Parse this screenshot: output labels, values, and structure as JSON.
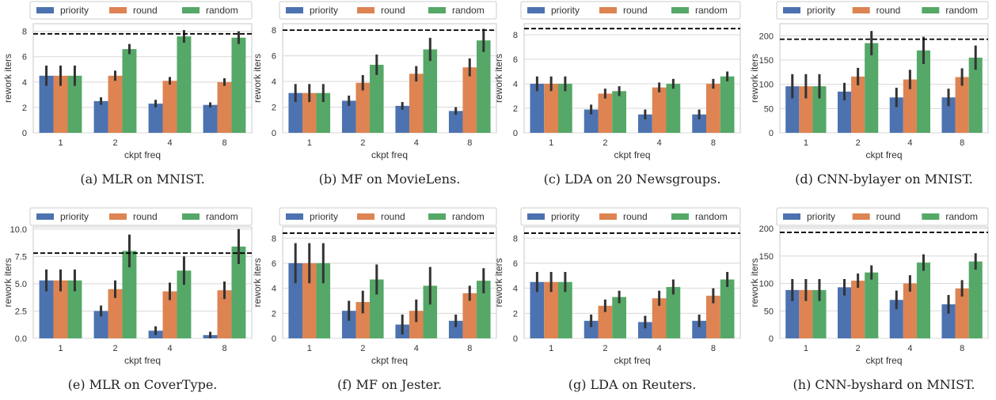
{
  "legend": [
    "priority",
    "round",
    "random"
  ],
  "colors": {
    "priority": "#4c72b0",
    "round": "#dd8452",
    "random": "#55a868",
    "errorbar": "#333333",
    "reference": "#000000"
  },
  "chart_data": [
    {
      "type": "bar",
      "caption": "(a) MLR on MNIST.",
      "xlabel": "ckpt freq",
      "ylabel": "rework iters",
      "categories": [
        "1",
        "2",
        "4",
        "8"
      ],
      "ylim": [
        0,
        8.6
      ],
      "yticks": [
        0,
        2,
        4,
        6,
        8
      ],
      "reference_line": 7.8,
      "series": [
        {
          "name": "priority",
          "values": [
            4.5,
            2.5,
            2.3,
            2.2
          ],
          "err": [
            0.8,
            0.3,
            0.3,
            0.2
          ]
        },
        {
          "name": "round",
          "values": [
            4.5,
            4.5,
            4.1,
            4.0
          ],
          "err": [
            0.8,
            0.4,
            0.3,
            0.3
          ]
        },
        {
          "name": "random",
          "values": [
            4.5,
            6.6,
            7.6,
            7.5
          ],
          "err": [
            0.8,
            0.4,
            0.5,
            0.5
          ]
        }
      ]
    },
    {
      "type": "bar",
      "caption": "(b) MF on MovieLens.",
      "xlabel": "ckpt freq",
      "ylabel": "rework iters",
      "categories": [
        "1",
        "2",
        "4",
        "8"
      ],
      "ylim": [
        0,
        8.5
      ],
      "yticks": [
        0,
        2,
        4,
        6,
        8
      ],
      "reference_line": 8.0,
      "series": [
        {
          "name": "priority",
          "values": [
            3.1,
            2.5,
            2.1,
            1.7
          ],
          "err": [
            0.7,
            0.4,
            0.3,
            0.3
          ]
        },
        {
          "name": "round",
          "values": [
            3.1,
            3.9,
            4.6,
            5.1
          ],
          "err": [
            0.7,
            0.6,
            0.6,
            0.7
          ]
        },
        {
          "name": "random",
          "values": [
            3.1,
            5.3,
            6.5,
            7.2
          ],
          "err": [
            0.7,
            0.8,
            0.9,
            0.9
          ]
        }
      ]
    },
    {
      "type": "bar",
      "caption": "(c) LDA on 20 Newsgroups.",
      "xlabel": "ckpt freq",
      "ylabel": "rework iters",
      "categories": [
        "1",
        "2",
        "4",
        "8"
      ],
      "ylim": [
        0,
        8.9
      ],
      "yticks": [
        0,
        2,
        4,
        6,
        8
      ],
      "reference_line": 8.5,
      "series": [
        {
          "name": "priority",
          "values": [
            4.0,
            1.9,
            1.5,
            1.5
          ],
          "err": [
            0.6,
            0.4,
            0.4,
            0.4
          ]
        },
        {
          "name": "round",
          "values": [
            4.0,
            3.2,
            3.7,
            4.0
          ],
          "err": [
            0.6,
            0.4,
            0.4,
            0.4
          ]
        },
        {
          "name": "random",
          "values": [
            4.0,
            3.4,
            4.0,
            4.6
          ],
          "err": [
            0.6,
            0.4,
            0.4,
            0.4
          ]
        }
      ]
    },
    {
      "type": "bar",
      "caption": "(d) CNN-bylayer on MNIST.",
      "xlabel": "ckpt freq",
      "ylabel": "rework iters",
      "categories": [
        "1",
        "2",
        "4",
        "8"
      ],
      "ylim": [
        0,
        225
      ],
      "yticks": [
        0,
        50,
        100,
        150,
        200
      ],
      "reference_line": 193,
      "series": [
        {
          "name": "priority",
          "values": [
            96,
            85,
            73,
            73
          ],
          "err": [
            25,
            18,
            20,
            18
          ]
        },
        {
          "name": "round",
          "values": [
            96,
            116,
            110,
            115
          ],
          "err": [
            25,
            18,
            20,
            18
          ]
        },
        {
          "name": "random",
          "values": [
            96,
            185,
            170,
            155
          ],
          "err": [
            25,
            25,
            28,
            25
          ]
        }
      ]
    },
    {
      "type": "bar",
      "caption": "(e) MLR on CoverType.",
      "xlabel": "ckpt freq",
      "ylabel": "rework iters",
      "categories": [
        "1",
        "2",
        "4",
        "8"
      ],
      "ylim": [
        0,
        10.2
      ],
      "yticks": [
        "0.0",
        "2.5",
        "5.0",
        "7.5",
        "10.0"
      ],
      "reference_line": 7.8,
      "series": [
        {
          "name": "priority",
          "values": [
            5.3,
            2.5,
            0.7,
            0.3
          ],
          "err": [
            1.0,
            0.5,
            0.4,
            0.3
          ]
        },
        {
          "name": "round",
          "values": [
            5.3,
            4.5,
            4.3,
            4.4
          ],
          "err": [
            1.0,
            0.8,
            0.8,
            0.8
          ]
        },
        {
          "name": "random",
          "values": [
            5.3,
            8.0,
            6.2,
            8.4
          ],
          "err": [
            1.0,
            1.5,
            1.3,
            1.6
          ]
        }
      ]
    },
    {
      "type": "bar",
      "caption": "(f) MF on Jester.",
      "xlabel": "ckpt freq",
      "ylabel": "rework iters",
      "categories": [
        "1",
        "2",
        "4",
        "8"
      ],
      "ylim": [
        0,
        8.9
      ],
      "yticks": [
        0,
        2,
        4,
        6,
        8
      ],
      "reference_line": 8.4,
      "series": [
        {
          "name": "priority",
          "values": [
            6.0,
            2.2,
            1.1,
            1.4
          ],
          "err": [
            1.6,
            0.8,
            0.8,
            0.5
          ]
        },
        {
          "name": "round",
          "values": [
            6.0,
            2.9,
            2.2,
            3.6
          ],
          "err": [
            1.6,
            0.9,
            0.9,
            0.6
          ]
        },
        {
          "name": "random",
          "values": [
            6.0,
            4.7,
            4.2,
            4.6
          ],
          "err": [
            1.6,
            1.2,
            1.5,
            1.0
          ]
        }
      ]
    },
    {
      "type": "bar",
      "caption": "(g) LDA on Reuters.",
      "xlabel": "ckpt freq",
      "ylabel": "rework iters",
      "categories": [
        "1",
        "2",
        "4",
        "8"
      ],
      "ylim": [
        0,
        8.9
      ],
      "yticks": [
        0,
        2,
        4,
        6,
        8
      ],
      "reference_line": 8.4,
      "series": [
        {
          "name": "priority",
          "values": [
            4.5,
            1.4,
            1.3,
            1.4
          ],
          "err": [
            0.8,
            0.5,
            0.5,
            0.5
          ]
        },
        {
          "name": "round",
          "values": [
            4.5,
            2.6,
            3.2,
            3.4
          ],
          "err": [
            0.8,
            0.5,
            0.6,
            0.6
          ]
        },
        {
          "name": "random",
          "values": [
            4.5,
            3.3,
            4.1,
            4.7
          ],
          "err": [
            0.8,
            0.5,
            0.6,
            0.6
          ]
        }
      ]
    },
    {
      "type": "bar",
      "caption": "(h) CNN-byshard on MNIST.",
      "xlabel": "ckpt freq",
      "ylabel": "rework iters",
      "categories": [
        "1",
        "2",
        "4",
        "8"
      ],
      "ylim": [
        0,
        203
      ],
      "yticks": [
        0,
        50,
        100,
        150,
        200
      ],
      "reference_line": 193,
      "series": [
        {
          "name": "priority",
          "values": [
            88,
            93,
            70,
            62
          ],
          "err": [
            20,
            15,
            17,
            17
          ]
        },
        {
          "name": "round",
          "values": [
            88,
            105,
            100,
            91
          ],
          "err": [
            20,
            13,
            15,
            15
          ]
        },
        {
          "name": "random",
          "values": [
            88,
            120,
            138,
            140
          ],
          "err": [
            20,
            13,
            15,
            15
          ]
        }
      ]
    }
  ]
}
